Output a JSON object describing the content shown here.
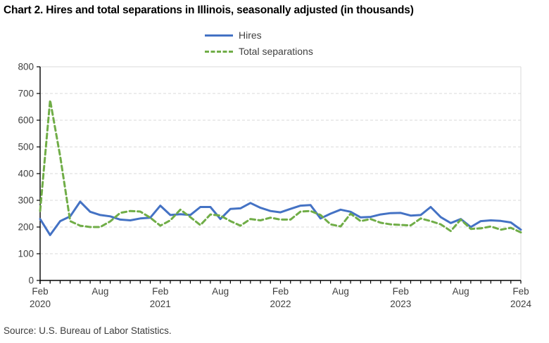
{
  "title": "Chart 2. Hires and total separations in Illinois, seasonally adjusted (in thousands)",
  "source": "Source: U.S. Bureau of Labor Statistics.",
  "chart_data": {
    "type": "line",
    "title": "Chart 2. Hires and total separations in Illinois, seasonally adjusted (in thousands)",
    "units": "thousands",
    "x": [
      "Feb 2020",
      "Mar 2020",
      "Apr 2020",
      "May 2020",
      "Jun 2020",
      "Jul 2020",
      "Aug 2020",
      "Sep 2020",
      "Oct 2020",
      "Nov 2020",
      "Dec 2020",
      "Jan 2021",
      "Feb 2021",
      "Mar 2021",
      "Apr 2021",
      "May 2021",
      "Jun 2021",
      "Jul 2021",
      "Aug 2021",
      "Sep 2021",
      "Oct 2021",
      "Nov 2021",
      "Dec 2021",
      "Jan 2022",
      "Feb 2022",
      "Mar 2022",
      "Apr 2022",
      "May 2022",
      "Jun 2022",
      "Jul 2022",
      "Aug 2022",
      "Sep 2022",
      "Oct 2022",
      "Nov 2022",
      "Dec 2022",
      "Jan 2023",
      "Feb 2023",
      "Mar 2023",
      "Apr 2023",
      "May 2023",
      "Jun 2023",
      "Jul 2023",
      "Aug 2023",
      "Sep 2023",
      "Oct 2023",
      "Nov 2023",
      "Dec 2023",
      "Jan 2024",
      "Feb 2024"
    ],
    "series": [
      {
        "name": "Hires",
        "color": "#4472C4",
        "dashed": false,
        "values": [
          230,
          170,
          222,
          240,
          295,
          257,
          245,
          240,
          228,
          225,
          232,
          235,
          280,
          245,
          248,
          245,
          275,
          275,
          230,
          268,
          270,
          290,
          272,
          260,
          255,
          268,
          280,
          282,
          232,
          250,
          265,
          257,
          236,
          238,
          247,
          252,
          253,
          243,
          245,
          275,
          237,
          215,
          230,
          200,
          222,
          225,
          223,
          217,
          190
        ]
      },
      {
        "name": "Total separations",
        "color": "#70AD47",
        "dashed": true,
        "values": [
          260,
          675,
          465,
          222,
          205,
          200,
          200,
          221,
          253,
          260,
          258,
          235,
          205,
          225,
          265,
          237,
          207,
          247,
          243,
          222,
          205,
          230,
          225,
          235,
          228,
          228,
          258,
          260,
          245,
          210,
          202,
          250,
          222,
          230,
          216,
          210,
          208,
          206,
          232,
          222,
          210,
          185,
          228,
          193,
          195,
          202,
          190,
          197,
          180
        ]
      }
    ],
    "ylim": [
      0,
      800
    ],
    "ytick_step": 100,
    "yticks": [
      0,
      100,
      200,
      300,
      400,
      500,
      600,
      700,
      800
    ],
    "xticks": [
      {
        "index": 0,
        "label": "Feb",
        "year": "2020"
      },
      {
        "index": 6,
        "label": "Aug"
      },
      {
        "index": 12,
        "label": "Feb",
        "year": "2021"
      },
      {
        "index": 18,
        "label": "Aug"
      },
      {
        "index": 24,
        "label": "Feb",
        "year": "2022"
      },
      {
        "index": 30,
        "label": "Aug"
      },
      {
        "index": 36,
        "label": "Feb",
        "year": "2023"
      },
      {
        "index": 42,
        "label": "Aug"
      },
      {
        "index": 48,
        "label": "Feb",
        "year": "2024"
      }
    ],
    "grid": "horizontal-dashed",
    "grid_color": "#D9D9D9",
    "axis_color": "#000000",
    "label_color": "#404040",
    "legend_position": "top-center"
  },
  "legend": {
    "items": [
      {
        "label": "Hires"
      },
      {
        "label": "Total separations"
      }
    ]
  }
}
